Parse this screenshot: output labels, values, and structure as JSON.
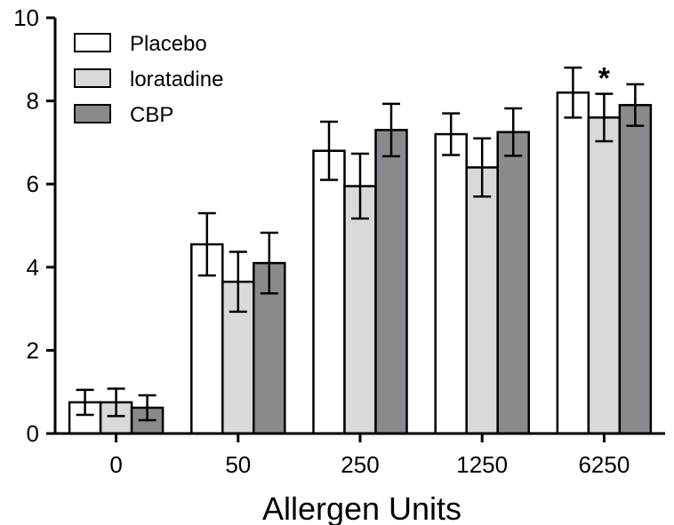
{
  "chart_data": {
    "type": "bar",
    "title": "",
    "xlabel": "Allergen Units",
    "ylabel": "",
    "categories": [
      "0",
      "50",
      "250",
      "1250",
      "6250"
    ],
    "ylim": [
      0,
      10
    ],
    "yticks": [
      0,
      2,
      4,
      6,
      8,
      10
    ],
    "grid": false,
    "legend_position": "top-left",
    "series": [
      {
        "name": "Placebo",
        "color": "#ffffff",
        "values": [
          0.75,
          4.55,
          6.8,
          7.2,
          8.2
        ],
        "errors": [
          0.3,
          0.75,
          0.7,
          0.5,
          0.6
        ]
      },
      {
        "name": "loratadine",
        "color": "#d9d9dc",
        "values": [
          0.75,
          3.65,
          5.95,
          6.4,
          7.6
        ],
        "errors": [
          0.33,
          0.72,
          0.78,
          0.7,
          0.57
        ]
      },
      {
        "name": "CBP",
        "color": "#8a8a8e",
        "values": [
          0.62,
          4.1,
          7.3,
          7.25,
          7.9
        ],
        "errors": [
          0.3,
          0.73,
          0.63,
          0.57,
          0.5
        ]
      }
    ],
    "annotations": [
      {
        "text": "*",
        "category": "6250",
        "series": "loratadine"
      }
    ]
  }
}
